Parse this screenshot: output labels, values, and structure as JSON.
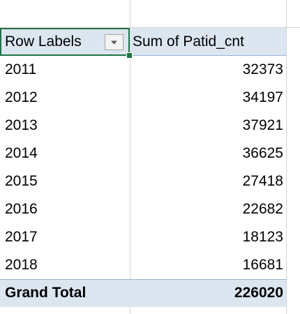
{
  "pivot": {
    "header": {
      "row_labels": "Row Labels",
      "value_field": "Sum of Patid_cnt"
    },
    "rows": [
      {
        "label": "2011",
        "value": "32373"
      },
      {
        "label": "2012",
        "value": "34197"
      },
      {
        "label": "2013",
        "value": "37921"
      },
      {
        "label": "2014",
        "value": "36625"
      },
      {
        "label": "2015",
        "value": "27418"
      },
      {
        "label": "2016",
        "value": "22682"
      },
      {
        "label": "2017",
        "value": "18123"
      },
      {
        "label": "2018",
        "value": "16681"
      }
    ],
    "grand_total": {
      "label": "Grand Total",
      "value": "226020"
    }
  },
  "icons": {
    "filter": "filter-dropdown-icon"
  },
  "colors": {
    "header_fill": "#dce6f1",
    "border": "#95b3d7",
    "selection": "#217346",
    "gridline": "#d4d4d4"
  }
}
